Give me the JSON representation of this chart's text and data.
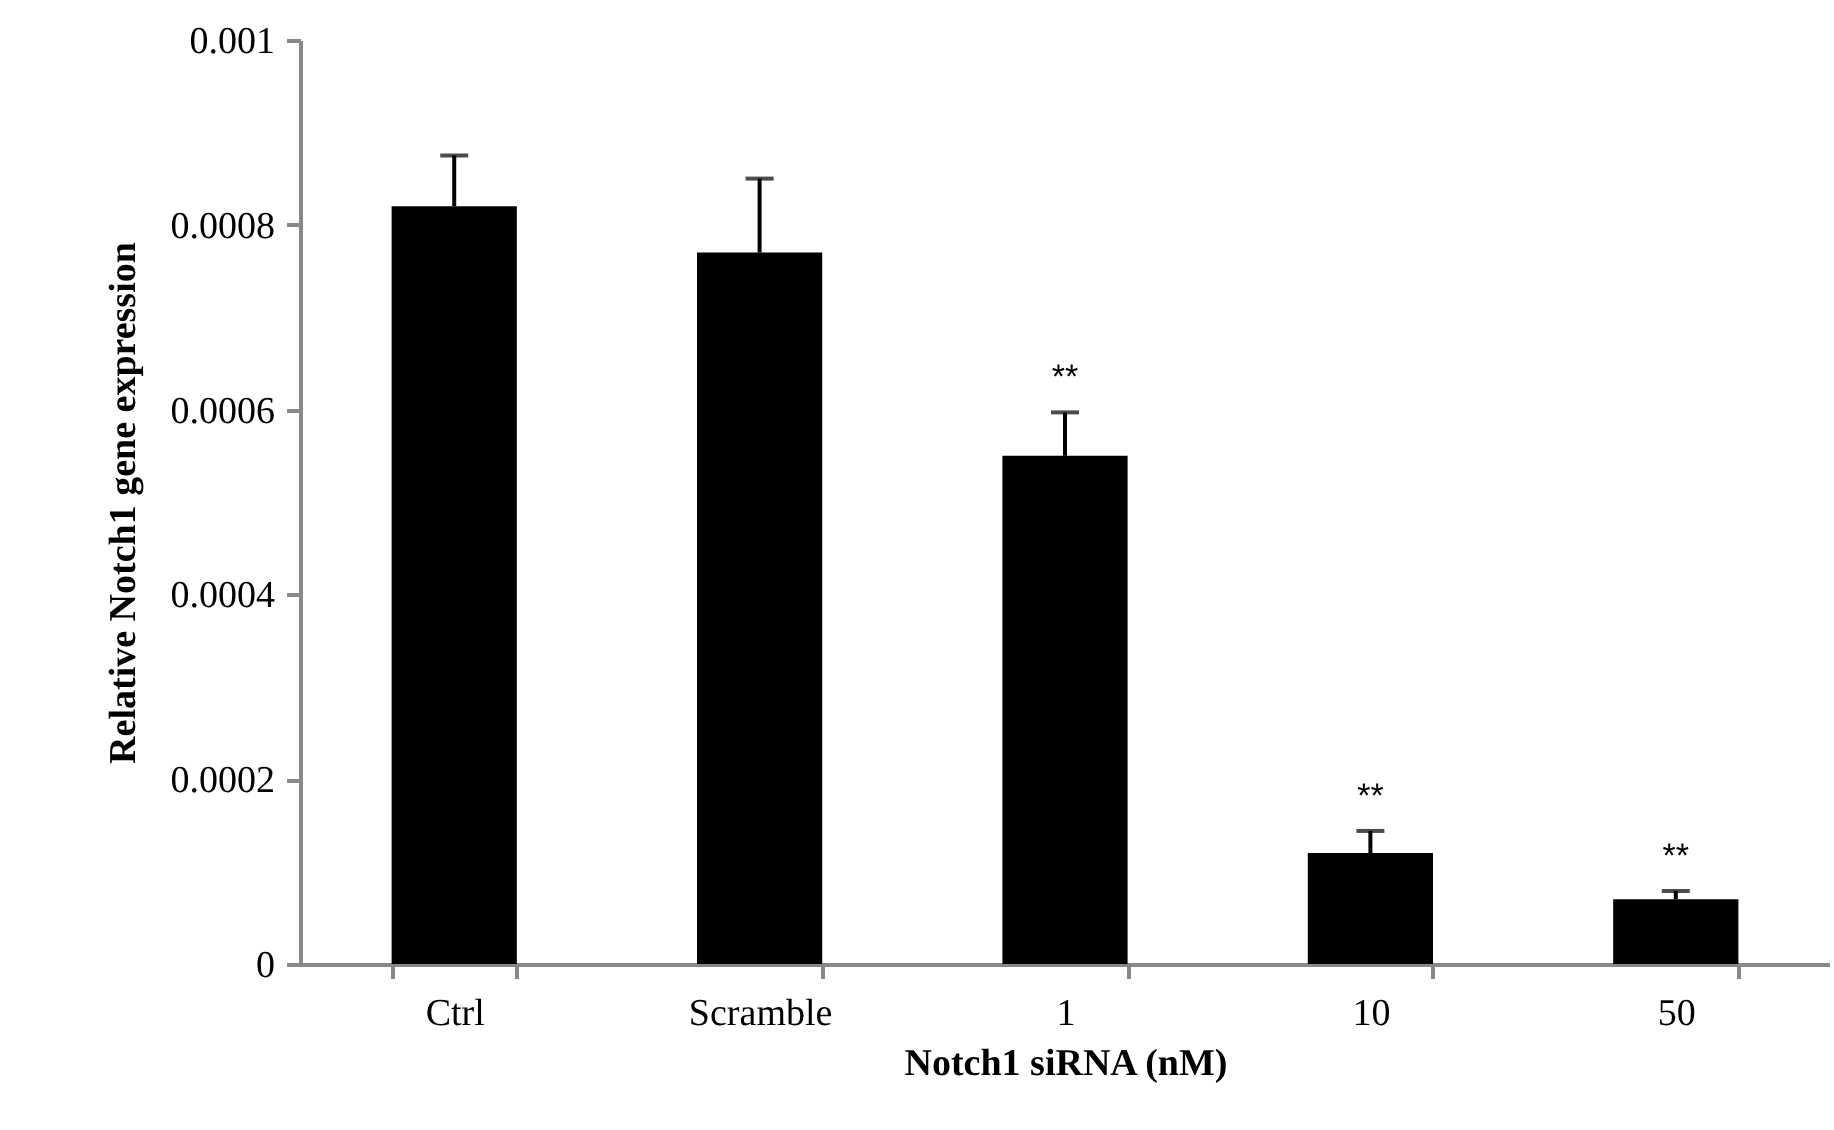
{
  "chart_data": {
    "type": "bar",
    "xlabel": "Notch1 siRNA (nM)",
    "ylabel": "Relative Notch1 gene expression",
    "categories": [
      "Ctrl",
      "Scramble",
      "1",
      "10",
      "50"
    ],
    "values": [
      0.00082,
      0.00077,
      0.00055,
      0.00012,
      7e-05
    ],
    "errors": [
      [
        0.00082,
        0.000875
      ],
      [
        0.00077,
        0.00085
      ],
      [
        0.00055,
        0.000597
      ],
      [
        0.00012,
        0.000144
      ],
      [
        7e-05,
        7.9e-05
      ]
    ],
    "color": "#000000",
    "ylim": [
      0,
      0.001
    ],
    "yticks": [
      0,
      0.0002,
      0.0004,
      0.0006,
      0.0008,
      0.001
    ],
    "annotations": [
      {
        "text": "**",
        "x": "1",
        "y": 0.000597
      },
      {
        "text": "**",
        "x": "10",
        "y": 0.000144
      },
      {
        "text": "**",
        "x": "50",
        "y": 7.9e-05
      }
    ]
  }
}
